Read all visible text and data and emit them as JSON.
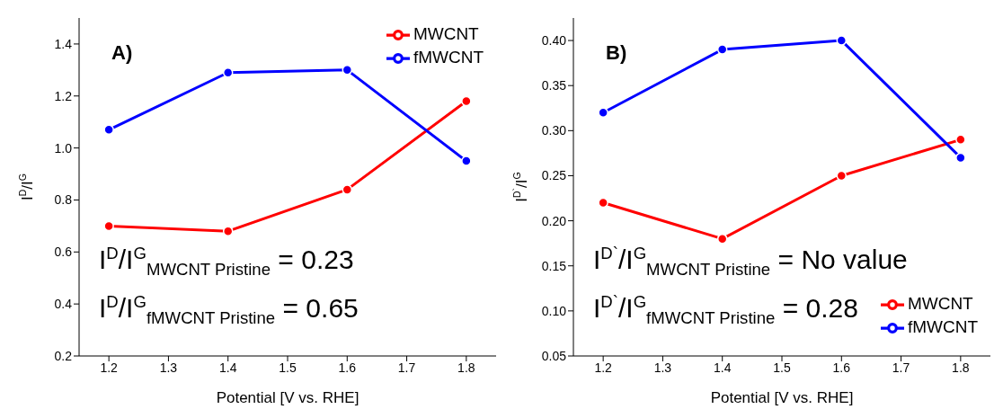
{
  "chart_data": [
    {
      "type": "line",
      "xlabel": "Potential [V vs. RHE]",
      "ylabel": "I$^{D}$/I$^{G}$",
      "x": [
        1.2,
        1.4,
        1.6,
        1.8
      ],
      "series": [
        {
          "name": "MWCNT",
          "color": "#ff0000",
          "values": [
            0.7,
            0.68,
            0.84,
            1.18
          ]
        },
        {
          "name": "fMWCNT",
          "color": "#0000ff",
          "values": [
            1.07,
            1.29,
            1.3,
            0.95
          ]
        }
      ],
      "xlim": [
        1.15,
        1.85
      ],
      "xticks": [
        1.2,
        1.3,
        1.4,
        1.5,
        1.6,
        1.7,
        1.8
      ],
      "ylim": [
        0.2,
        1.5
      ],
      "yticks": [
        0.2,
        0.4,
        0.6,
        0.8,
        {
          "value": 1.0,
          "label": "1.0"
        },
        1.2,
        1.4
      ],
      "annotations": [
        "A)",
        "I$^{D}$/I$^{G}$$_{MWCNT Pristine}$ = 0.23",
        "I$^{D}$/I$^{G}$$_{fMWCNT Pristine}$ = 0.65"
      ],
      "legend": "top right",
      "marker": "circle",
      "grid": false
    },
    {
      "type": "line",
      "xlabel": "Potential [V vs. RHE]",
      "ylabel": "I$^{D`}$/I$^{G}$",
      "x": [
        1.2,
        1.4,
        1.6,
        1.8
      ],
      "series": [
        {
          "name": "MWCNT",
          "color": "#ff0000",
          "values": [
            0.22,
            0.18,
            0.25,
            0.29
          ]
        },
        {
          "name": "fMWCNT",
          "color": "#0000ff",
          "values": [
            0.32,
            0.39,
            0.4,
            0.27
          ]
        }
      ],
      "xlim": [
        1.15,
        1.85
      ],
      "xticks": [
        1.2,
        1.3,
        1.4,
        1.5,
        1.6,
        1.7,
        1.8
      ],
      "ylim": [
        0.05,
        0.425
      ],
      "yticks": [
        0.05,
        {
          "value": 0.1,
          "label": "0.10"
        },
        0.15,
        {
          "value": 0.2,
          "label": "0.20"
        },
        0.25,
        {
          "value": 0.3,
          "label": "0.30"
        },
        0.35,
        {
          "value": 0.4,
          "label": "0.40"
        }
      ],
      "annotations": [
        "B)",
        "I$^{D`}$/I$^{G}$$_{MWCNT Pristine}$ = No value",
        "I$^{D`}$/I$^{G}$$_{fMWCNT Pristine}$ = 0.28"
      ],
      "legend": "bottom right",
      "marker": "circle",
      "grid": false
    }
  ]
}
